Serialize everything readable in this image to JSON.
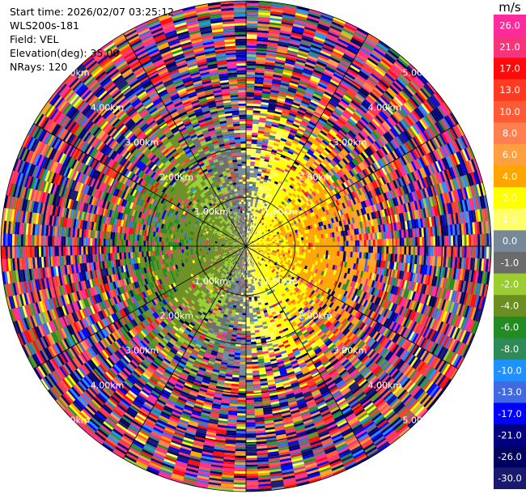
{
  "info": {
    "start_time": "Start time: 2026/02/07 03:25:12",
    "instrument": "WLS200s-181",
    "field": "Field: VEL",
    "elevation": "Elevation(deg): 35.00",
    "nrays": "NRays: 120"
  },
  "colorbar": {
    "unit": "m/s",
    "labels": [
      "26.0",
      "21.0",
      "17.0",
      "13.0",
      "10.0",
      "8.0",
      "6.0",
      "4.0",
      "2.0",
      "1.0",
      "0.0",
      "-1.0",
      "-2.0",
      "-4.0",
      "-6.0",
      "-8.0",
      "-10.0",
      "-13.0",
      "-17.0",
      "-21.0",
      "-26.0",
      "-30.0"
    ],
    "colors": [
      "#ff2a9b",
      "#f7347a",
      "#ff0a0a",
      "#ff3a20",
      "#ff5a36",
      "#ff7f50",
      "#ffa040",
      "#ffa500",
      "#ffff00",
      "#ffff66",
      "#778899",
      "#6b6b6b",
      "#9acd32",
      "#6b8e23",
      "#228b22",
      "#2e8b57",
      "#1e90ff",
      "#4169e1",
      "#0000ff",
      "#000080",
      "#000060",
      "#191970"
    ]
  },
  "chart_data": {
    "type": "heatmap",
    "title": "",
    "xlabel": "",
    "ylabel": "",
    "n_rays": 120,
    "max_range_km": 5.0,
    "range_ring_km": [
      1.0,
      2.0,
      3.0,
      4.0,
      5.0
    ],
    "ring_labels": [
      "1.00km",
      "2.00km",
      "3.00km",
      "4.00km",
      "5.00km"
    ],
    "velocity_range_ms": [
      -30.0,
      26.0
    ],
    "spoke_azimuths_deg": [
      0,
      30,
      60,
      90,
      120,
      150,
      180,
      210,
      240,
      270,
      300,
      330
    ]
  }
}
